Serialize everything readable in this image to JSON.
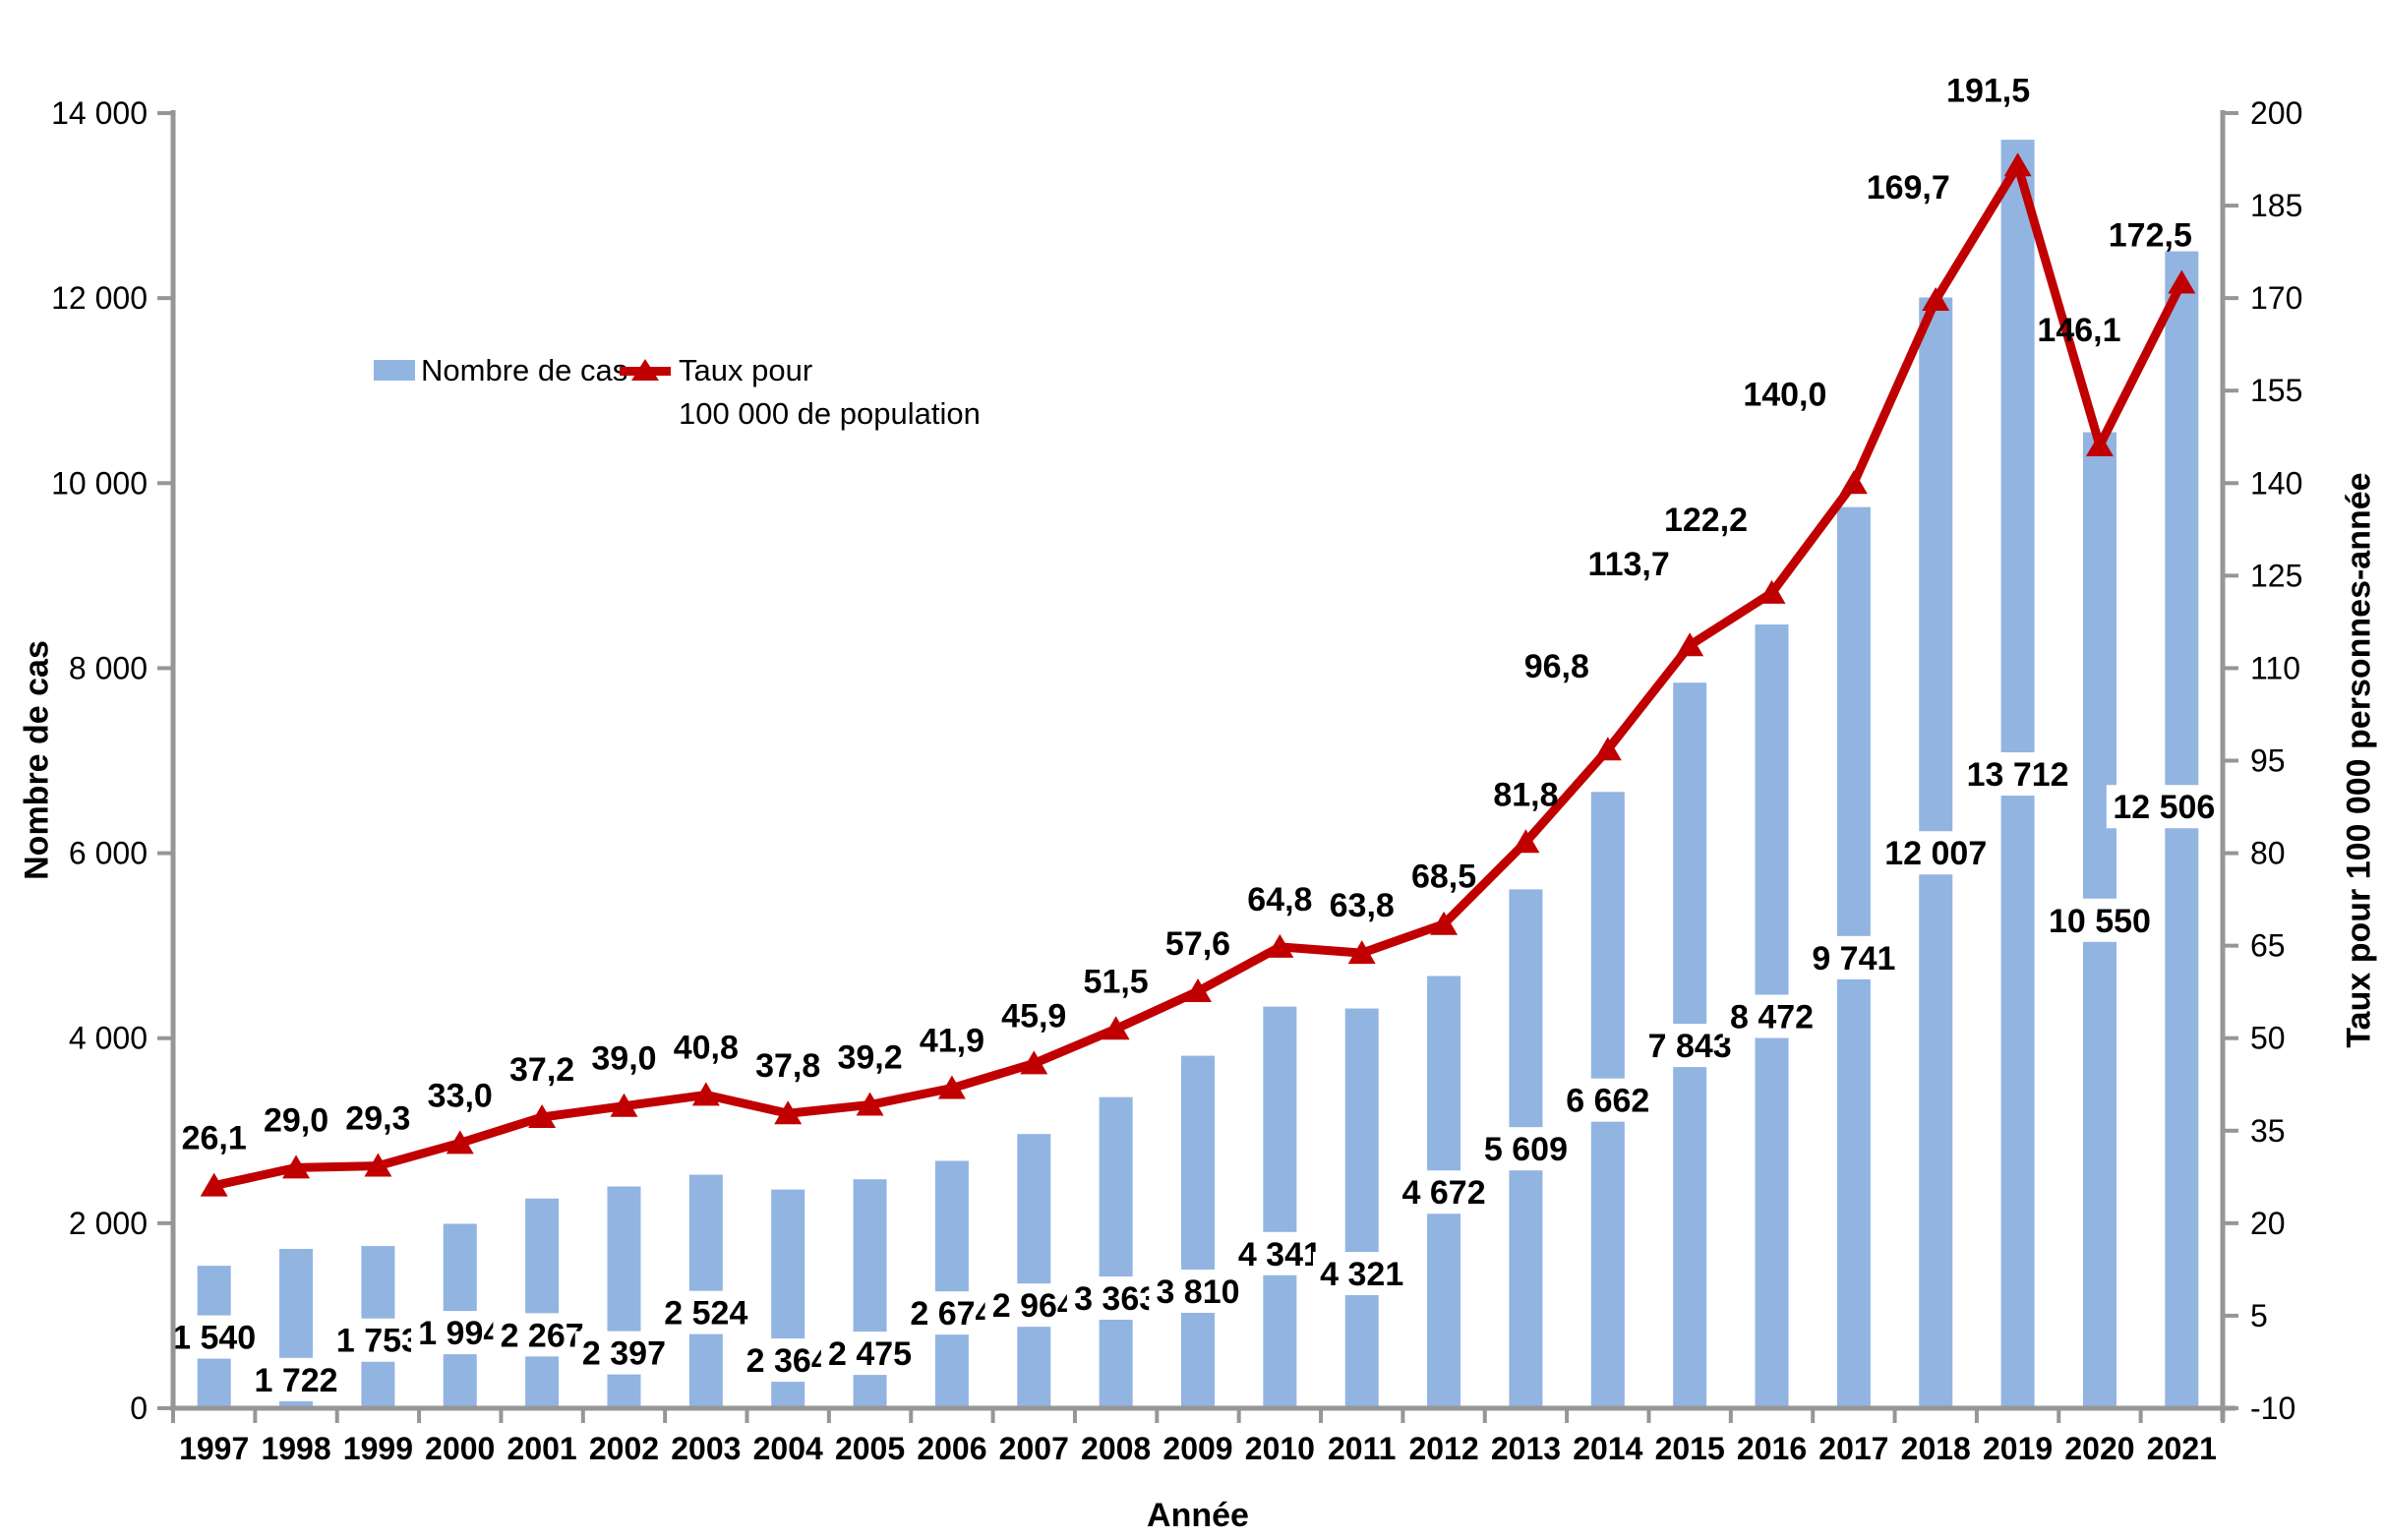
{
  "legend": {
    "bars_label": "Nombre de cas",
    "line_label_line1": "Taux pour",
    "line_label_line2": "100 000 de population"
  },
  "axes": {
    "left_title": "Nombre de cas",
    "right_title": "Taux pour 100 000 personnes-année",
    "x_title": "Année",
    "left_ticks": [
      "0",
      "2 000",
      "4 000",
      "6 000",
      "8 000",
      "10 000",
      "12 000",
      "14 000"
    ],
    "right_ticks": [
      "-10",
      "5",
      "20",
      "35",
      "50",
      "65",
      "80",
      "95",
      "110",
      "125",
      "140",
      "155",
      "170",
      "185",
      "200"
    ]
  },
  "chart_data": {
    "type": "bar",
    "categories": [
      "1997",
      "1998",
      "1999",
      "2000",
      "2001",
      "2002",
      "2003",
      "2004",
      "2005",
      "2006",
      "2007",
      "2008",
      "2009",
      "2010",
      "2011",
      "2012",
      "2013",
      "2014",
      "2015",
      "2016",
      "2017",
      "2018",
      "2019",
      "2020",
      "2021"
    ],
    "series": [
      {
        "name": "Nombre de cas",
        "type": "bar",
        "color": "#92B4E1",
        "values": [
          1540,
          1722,
          1753,
          1994,
          2267,
          2397,
          2524,
          2364,
          2475,
          2674,
          2964,
          3363,
          3810,
          4341,
          4321,
          4672,
          5609,
          6662,
          7843,
          8472,
          9741,
          12007,
          13712,
          10550,
          12506
        ]
      },
      {
        "name": "Taux pour 100 000 de population",
        "type": "line",
        "color": "#C00000",
        "values": [
          26.1,
          29.0,
          29.3,
          33.0,
          37.2,
          39.0,
          40.8,
          37.8,
          39.2,
          41.9,
          45.9,
          51.5,
          57.6,
          64.8,
          63.8,
          68.5,
          81.8,
          96.8,
          113.7,
          122.2,
          140.0,
          169.7,
          191.5,
          146.1,
          172.5
        ]
      }
    ],
    "xlabel": "Année",
    "ylabel_left": "Nombre de cas",
    "ylabel_right": "Taux pour 100 000 personnes-année",
    "ylim_left": [
      0,
      14000
    ],
    "ystep_left": 2000,
    "ylim_right": [
      -10,
      200
    ],
    "ystep_right": 15,
    "grid": false,
    "legend_position": "inside-top-left",
    "decimal_separator": ",",
    "thousands_separator": " ",
    "axis_color": "#969696",
    "label_color": "#000000"
  }
}
